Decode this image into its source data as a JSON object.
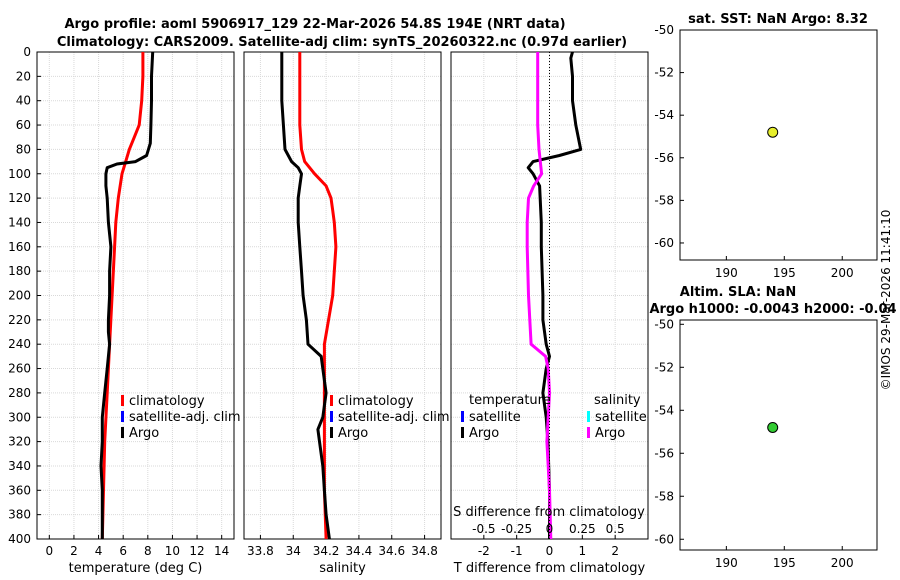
{
  "header": {
    "line1": "Argo profile: aoml 5906917_129 22-Mar-2026 54.8S 194E (NRT data)",
    "line2": "Climatology: CARS2009. Satellite-adj clim: synTS_20260322.nc (0.97d earlier)"
  },
  "copyright": "©IMOS 29-Mar-2026 11:41:10",
  "colors": {
    "climatology": "#ff0000",
    "satellite": "#0000ff",
    "argo": "#000000",
    "sal_argo": "#ff00ff",
    "sal_sat": "#00ffff",
    "marker_sst": "#e6ee2c",
    "marker_sla": "#33cc33",
    "grid": "#d9d9d9"
  },
  "chart_data": [
    {
      "type": "line",
      "name": "temperature-profile",
      "xlabel": "temperature (deg C)",
      "ylabel": "",
      "xlim": [
        -1,
        15
      ],
      "ylim": [
        400,
        0
      ],
      "xticks": [
        "0",
        "2",
        "4",
        "6",
        "8",
        "10",
        "12",
        "14"
      ],
      "yticks": [
        "0",
        "20",
        "40",
        "60",
        "80",
        "100",
        "120",
        "140",
        "160",
        "180",
        "200",
        "220",
        "240",
        "260",
        "280",
        "300",
        "320",
        "340",
        "360",
        "380",
        "400"
      ],
      "legend": {
        "placement": "lower-right",
        "entries": [
          "climatology",
          "satellite-adj. clim",
          "Argo"
        ]
      },
      "series": [
        {
          "name": "climatology",
          "depth": [
            0,
            20,
            40,
            60,
            70,
            80,
            90,
            100,
            120,
            140,
            160,
            200,
            240,
            280,
            320,
            360,
            400
          ],
          "values": [
            7.6,
            7.6,
            7.5,
            7.3,
            6.9,
            6.5,
            6.2,
            5.9,
            5.6,
            5.4,
            5.3,
            5.1,
            4.9,
            4.7,
            4.5,
            4.4,
            4.3
          ]
        },
        {
          "name": "Argo",
          "depth": [
            0,
            20,
            40,
            60,
            75,
            85,
            90,
            92,
            95,
            100,
            110,
            120,
            140,
            160,
            180,
            200,
            220,
            230,
            240,
            250,
            260,
            280,
            300,
            320,
            340,
            360,
            380,
            400
          ],
          "values": [
            8.4,
            8.3,
            8.3,
            8.25,
            8.2,
            7.9,
            7.0,
            5.5,
            4.7,
            4.6,
            4.6,
            4.7,
            4.8,
            5.0,
            4.9,
            4.9,
            4.8,
            4.8,
            4.9,
            4.8,
            4.7,
            4.5,
            4.3,
            4.3,
            4.2,
            4.3,
            4.3,
            4.3
          ]
        }
      ]
    },
    {
      "type": "line",
      "name": "salinity-profile",
      "xlabel": "salinity",
      "xlim": [
        33.7,
        34.9
      ],
      "ylim": [
        400,
        0
      ],
      "xticks": [
        "33.8",
        "34",
        "34.2",
        "34.4",
        "34.6",
        "34.8"
      ],
      "legend": {
        "placement": "lower-right",
        "entries": [
          "climatology",
          "satellite-adj. clim",
          "Argo"
        ]
      },
      "series": [
        {
          "name": "climatology",
          "depth": [
            0,
            20,
            40,
            60,
            80,
            90,
            100,
            110,
            120,
            130,
            140,
            160,
            180,
            200,
            240,
            280,
            320,
            360,
            400
          ],
          "values": [
            34.04,
            34.04,
            34.04,
            34.04,
            34.05,
            34.07,
            34.13,
            34.2,
            34.23,
            34.24,
            34.25,
            34.26,
            34.25,
            34.24,
            34.19,
            34.19,
            34.19,
            34.19,
            34.2
          ]
        },
        {
          "name": "Argo",
          "depth": [
            0,
            20,
            40,
            60,
            80,
            90,
            95,
            100,
            110,
            120,
            140,
            160,
            180,
            200,
            220,
            240,
            250,
            260,
            280,
            300,
            310,
            320,
            340,
            360,
            380,
            400
          ],
          "values": [
            33.93,
            33.93,
            33.93,
            33.94,
            33.95,
            33.99,
            34.03,
            34.05,
            34.04,
            34.03,
            34.03,
            34.04,
            34.05,
            34.06,
            34.08,
            34.09,
            34.17,
            34.18,
            34.2,
            34.18,
            34.15,
            34.16,
            34.18,
            34.19,
            34.2,
            34.22
          ]
        }
      ]
    },
    {
      "type": "line",
      "name": "difference-profile",
      "xlabel": "T difference from climatology",
      "xlabel_top": "S difference from climatology",
      "xlim": [
        -3,
        3
      ],
      "ylim": [
        400,
        0
      ],
      "xticks": [
        "-2",
        "-1",
        "0",
        "1",
        "2"
      ],
      "xticks_top": [
        "-0.5",
        "-0.25",
        "0",
        "0.25",
        "0.5"
      ],
      "legend": {
        "placement": "lower",
        "headers": [
          "temperature",
          "salinity"
        ],
        "entries": [
          "satellite",
          "Argo",
          "satellite",
          "Argo"
        ]
      },
      "series": [
        {
          "name": "T diff Argo",
          "depth": [
            0,
            5,
            20,
            40,
            60,
            80,
            85,
            90,
            95,
            100,
            110,
            140,
            160,
            200,
            220,
            240,
            250,
            260,
            280,
            300,
            320,
            360,
            400
          ],
          "values": [
            0.7,
            0.65,
            0.7,
            0.7,
            0.8,
            0.95,
            0.3,
            -0.5,
            -0.65,
            -0.5,
            -0.3,
            -0.25,
            -0.25,
            -0.2,
            -0.2,
            -0.1,
            0.0,
            -0.1,
            -0.2,
            -0.1,
            -0.05,
            0.0,
            0.0
          ]
        },
        {
          "name": "S diff Argo",
          "depth": [
            0,
            20,
            40,
            60,
            80,
            90,
            100,
            110,
            120,
            140,
            160,
            200,
            240,
            250,
            260,
            280,
            300,
            320,
            360,
            400
          ],
          "values": [
            -0.09,
            -0.09,
            -0.09,
            -0.09,
            -0.08,
            -0.07,
            -0.06,
            -0.12,
            -0.16,
            -0.17,
            -0.17,
            -0.16,
            -0.14,
            -0.03,
            -0.01,
            0.0,
            -0.01,
            -0.02,
            0.0,
            0.01
          ]
        }
      ]
    },
    {
      "type": "scatter",
      "name": "sst-map",
      "title": "sat. SST: NaN Argo: 8.32",
      "xlim": [
        186,
        203
      ],
      "ylim": [
        -60.8,
        -50
      ],
      "xticks": [
        "190",
        "195",
        "200"
      ],
      "yticks": [
        "-50",
        "-52",
        "-54",
        "-56",
        "-58",
        "-60"
      ],
      "points": [
        {
          "x": 194,
          "y": -54.8
        }
      ]
    },
    {
      "type": "scatter",
      "name": "sla-map",
      "title": "Altim. SLA: NaN",
      "subtitle": "Argo h1000: -0.0043 h2000: -0.04",
      "xlim": [
        186,
        203
      ],
      "ylim": [
        -60.5,
        -49.8
      ],
      "xticks": [
        "190",
        "195",
        "200"
      ],
      "yticks": [
        "-50",
        "-52",
        "-54",
        "-56",
        "-58",
        "-60"
      ],
      "points": [
        {
          "x": 194,
          "y": -54.8
        }
      ]
    }
  ]
}
